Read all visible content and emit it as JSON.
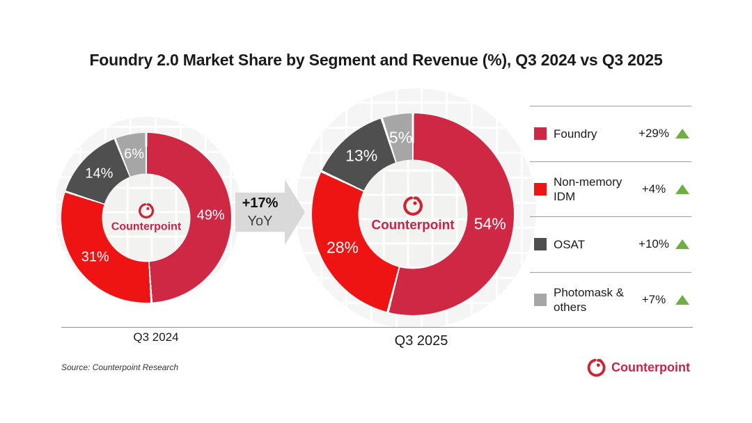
{
  "title": "Foundry 2.0 Market Share by Segment and Revenue (%), Q3 2024 vs Q3 2025",
  "chart_data": [
    {
      "type": "pie",
      "title": "Q3 2024",
      "unit": "%",
      "categories": [
        "Foundry",
        "Non-memory IDM",
        "OSAT",
        "Photomask & others"
      ],
      "values": [
        49,
        31,
        14,
        6
      ],
      "labels": [
        "49%",
        "31%",
        "14%",
        "6%"
      ],
      "segment_colors": [
        "#ce2845",
        "#ee1414",
        "#4f4f4f",
        "#a6a6a6"
      ],
      "start_angle_deg": 0,
      "direction": "clockwise",
      "donut_hole_ratio": 0.52,
      "label_radius": 0.76,
      "label_font": 20
    },
    {
      "type": "pie",
      "title": "Q3 2025",
      "unit": "%",
      "categories": [
        "Foundry",
        "Non-memory IDM",
        "OSAT",
        "Photomask & others"
      ],
      "values": [
        54,
        28,
        13,
        5
      ],
      "labels": [
        "54%",
        "28%",
        "13%",
        "5%"
      ],
      "segment_colors": [
        "#ce2845",
        "#ee1414",
        "#4f4f4f",
        "#a6a6a6"
      ],
      "start_angle_deg": 0,
      "direction": "clockwise",
      "donut_hole_ratio": 0.54,
      "label_radius": 0.77,
      "label_font": 23
    }
  ],
  "growth_arrow": {
    "line1": "+17%",
    "line2": "YoY"
  },
  "legend": [
    {
      "label": "Foundry",
      "change": "+29%",
      "trend": "up",
      "color": "#ce2845"
    },
    {
      "label": "Non-memory IDM",
      "change": "+4%",
      "trend": "up",
      "color": "#ee1414"
    },
    {
      "label": "OSAT",
      "change": "+10%",
      "trend": "up",
      "color": "#4f4f4f"
    },
    {
      "label": "Photomask & others",
      "change": "+7%",
      "trend": "up",
      "color": "#a6a6a6"
    }
  ],
  "center_logo": {
    "text": "Counterpoint"
  },
  "footer": {
    "source": "Source: Counterpoint Research",
    "brand": "Counterpoint"
  },
  "colors": {
    "accent_crimson": "#ce2845",
    "accent_red": "#ee1414",
    "dark_gray": "#4f4f4f",
    "light_gray": "#a6a6a6",
    "growth_green": "#6fae44",
    "arrow_gray": "#d9d9d9",
    "brand_red": "#c32649",
    "brand_icon_red": "#cc2433"
  },
  "icons": {
    "brand": "counterpoint-swirl-icon",
    "trend_up": "triangle-up-icon"
  }
}
